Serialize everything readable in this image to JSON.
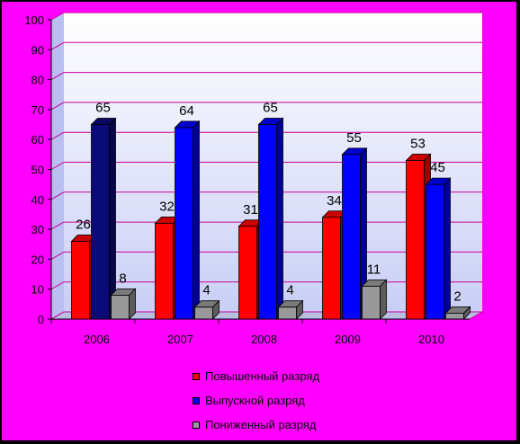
{
  "chart_data": {
    "type": "bar",
    "categories": [
      "2006",
      "2007",
      "2008",
      "2009",
      "2010"
    ],
    "series": [
      {
        "name": "Повышенный разряд",
        "values": [
          26,
          32,
          31,
          34,
          53
        ]
      },
      {
        "name": "Выпускной разряд",
        "values": [
          65,
          64,
          65,
          55,
          45
        ]
      },
      {
        "name": "Пониженный разряд",
        "values": [
          8,
          4,
          4,
          11,
          2
        ]
      }
    ],
    "ylim": [
      0,
      100
    ],
    "yticks": [
      "0",
      "10",
      "20",
      "30",
      "40",
      "50",
      "60",
      "70",
      "80",
      "90",
      "100"
    ],
    "title": "",
    "xlabel": "",
    "ylabel": "",
    "grid": true,
    "legend_position": "bottom",
    "data_labels": true,
    "style": "3d-columns"
  },
  "colors": {
    "page_background": "#ff00ff",
    "plot_wall": "#dfe3ff",
    "plot_wall_top": "#ffffff",
    "floor": "#b8bfe0",
    "gridline": "#c8009b",
    "series": [
      "#ff0000",
      "#0000ff",
      "#999999"
    ],
    "series_front_override": {
      "1": {
        "0": "#0a0a78"
      }
    }
  }
}
